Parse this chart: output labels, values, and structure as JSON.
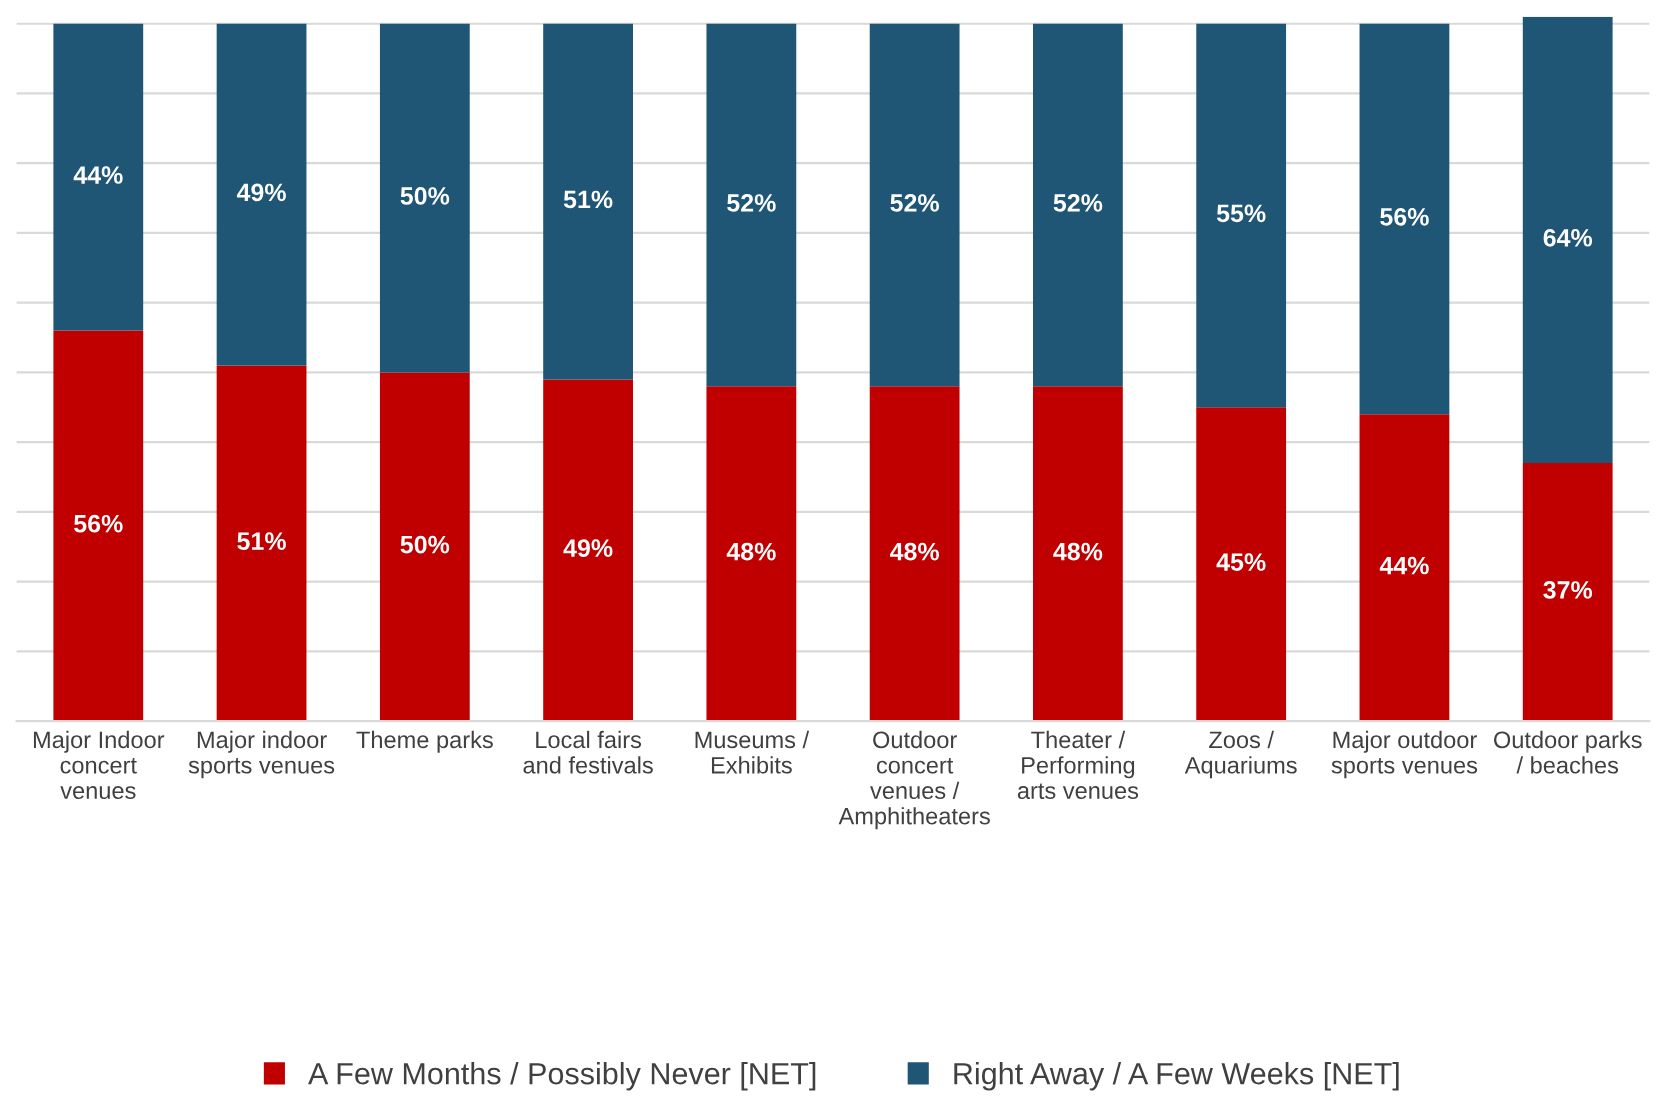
{
  "chart_data": {
    "type": "bar",
    "stacked": true,
    "categories": [
      "Major Indoor concert venues",
      "Major indoor sports venues",
      "Theme parks",
      "Local fairs and festivals",
      "Museums / Exhibits",
      "Outdoor concert venues / Amphitheaters",
      "Theater / Performing arts venues",
      "Zoos / Aquariums",
      "Major outdoor sports venues",
      "Outdoor parks / beaches"
    ],
    "series": [
      {
        "name": "A Few Months / Possibly Never [NET]",
        "color": "#c00000",
        "values": [
          56,
          51,
          50,
          49,
          48,
          48,
          48,
          45,
          44,
          37
        ],
        "value_labels": [
          "56%",
          "51%",
          "50%",
          "49%",
          "48%",
          "48%",
          "48%",
          "45%",
          "44%",
          "37%"
        ]
      },
      {
        "name": "Right Away / A Few Weeks [NET]",
        "color": "#1f5575",
        "values": [
          44,
          49,
          50,
          51,
          52,
          52,
          52,
          55,
          56,
          64
        ],
        "value_labels": [
          "44%",
          "49%",
          "50%",
          "51%",
          "52%",
          "52%",
          "52%",
          "55%",
          "56%",
          "64%"
        ]
      }
    ],
    "ylim": [
      0,
      101
    ],
    "yticks": [
      {
        "value": 0,
        "label": null
      },
      {
        "value": 10,
        "label": null
      },
      {
        "value": 20,
        "label": null
      },
      {
        "value": 30,
        "label": null
      },
      {
        "value": 40,
        "label": null
      },
      {
        "value": 50,
        "label": null
      },
      {
        "value": 60,
        "label": null
      },
      {
        "value": 70,
        "label": null
      },
      {
        "value": 80,
        "label": null
      },
      {
        "value": 90,
        "label": null
      },
      {
        "value": 100,
        "label": null
      }
    ],
    "grid": "y",
    "legend": "bottom",
    "tick_labels": "x"
  }
}
